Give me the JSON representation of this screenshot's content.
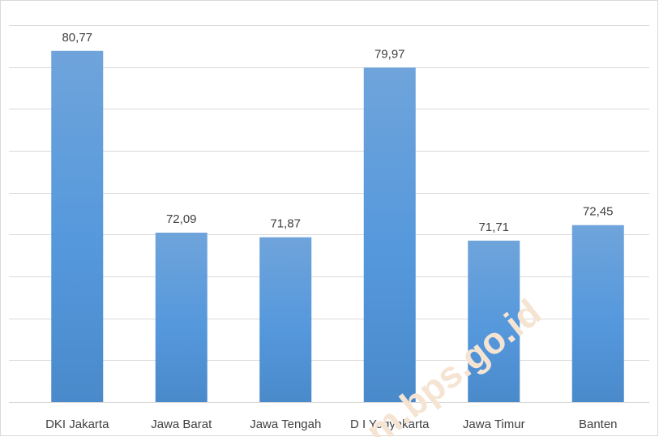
{
  "chart_data": {
    "type": "bar",
    "categories": [
      "DKI Jakarta",
      "Jawa Barat",
      "Jawa Tengah",
      "D I Yogyakarta",
      "Jawa Timur",
      "Banten"
    ],
    "values": [
      80.77,
      72.09,
      71.87,
      79.97,
      71.71,
      72.45
    ],
    "value_labels": [
      "80,77",
      "72,09",
      "71,87",
      "79,97",
      "71,71",
      "72,45"
    ],
    "title": "",
    "xlabel": "",
    "ylabel": "",
    "ylim": [
      64,
      82
    ],
    "grid": true,
    "legend": "none",
    "bar_color": "#5b9bd5"
  },
  "watermark": "m.bps.go.id"
}
